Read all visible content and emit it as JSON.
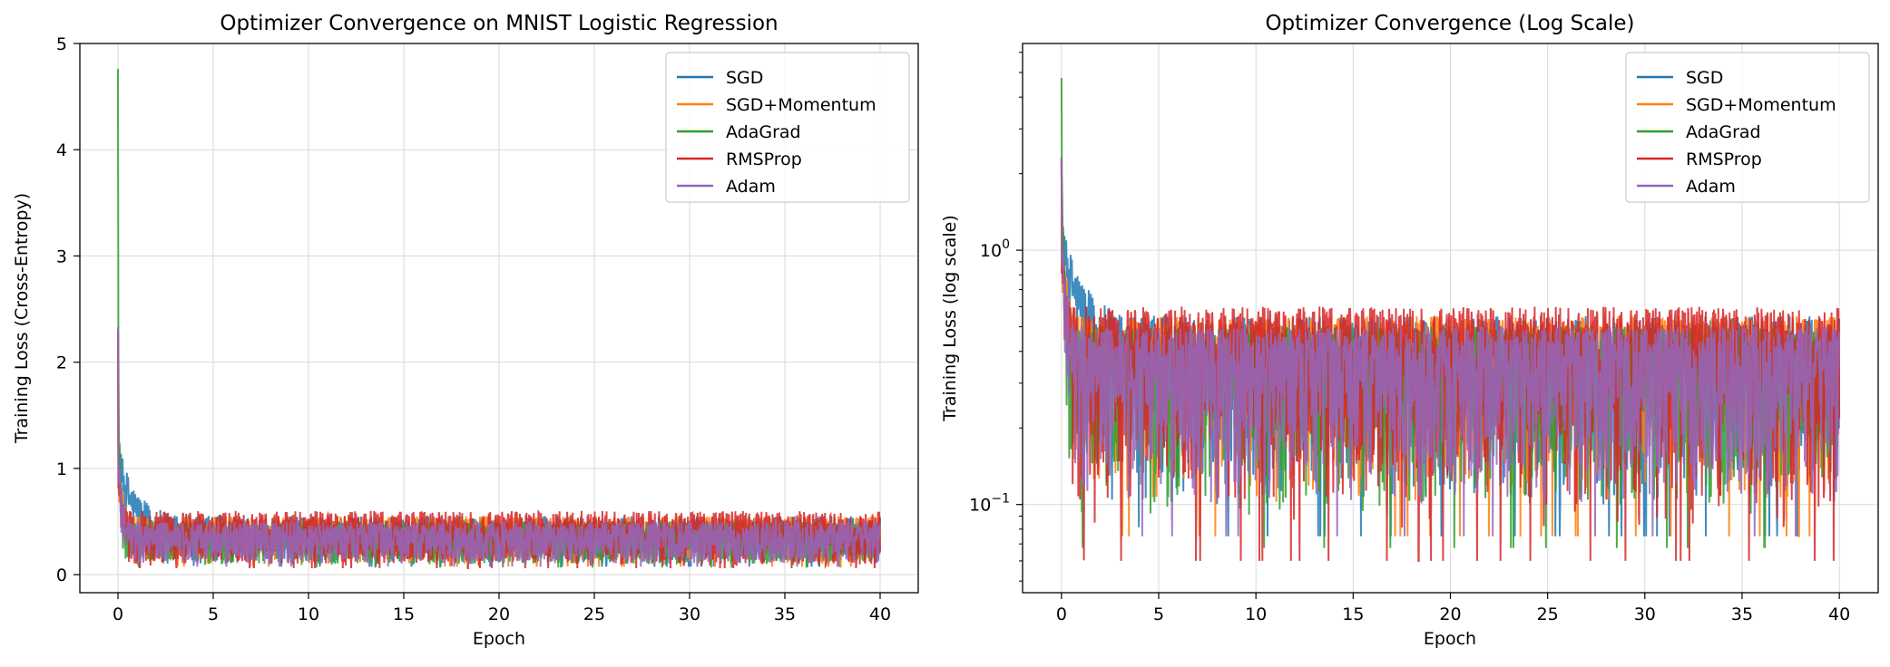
{
  "chart_data": [
    {
      "type": "line",
      "title": "Optimizer Convergence on MNIST Logistic Regression",
      "xlabel": "Epoch",
      "ylabel": "Training Loss (Cross-Entropy)",
      "xlim": [
        -2,
        42
      ],
      "ylim": [
        -0.17,
        5.0
      ],
      "yscale": "linear",
      "xticks": [
        0,
        5,
        10,
        15,
        20,
        25,
        30,
        35,
        40
      ],
      "yticks": [
        0,
        1,
        2,
        3,
        4,
        5
      ],
      "grid": true,
      "legend_position": "top-right",
      "series": [
        {
          "name": "SGD",
          "color": "#1f77b4",
          "start": 2.3,
          "floor": 0.5,
          "band_hi": 0.55,
          "band_lo": 0.1,
          "tau": 0.9
        },
        {
          "name": "SGD+Momentum",
          "color": "#ff7f0e",
          "start": 2.3,
          "floor": 0.45,
          "band_hi": 0.55,
          "band_lo": 0.1,
          "tau": 0.25
        },
        {
          "name": "AdaGrad",
          "color": "#2ca02c",
          "start": 4.76,
          "floor": 0.45,
          "band_hi": 0.5,
          "band_lo": 0.09,
          "tau": 0.1
        },
        {
          "name": "RMSProp",
          "color": "#d62728",
          "start": 2.3,
          "floor": 0.45,
          "band_hi": 0.6,
          "band_lo": 0.08,
          "tau": 0.15
        },
        {
          "name": "Adam",
          "color": "#9467bd",
          "start": 2.33,
          "floor": 0.45,
          "band_hi": 0.5,
          "band_lo": 0.1,
          "tau": 0.2
        }
      ]
    },
    {
      "type": "line",
      "title": "Optimizer Convergence (Log Scale)",
      "xlabel": "Epoch",
      "ylabel": "Training Loss (log scale)",
      "xlim": [
        -2,
        42
      ],
      "ylim": [
        0.045,
        6.5
      ],
      "yscale": "log",
      "xticks": [
        0,
        5,
        10,
        15,
        20,
        25,
        30,
        35,
        40
      ],
      "yticks": [
        {
          "value": 1,
          "base": "10",
          "exp": "0"
        },
        {
          "value": 0.1,
          "base": "10",
          "exp": "−1"
        }
      ],
      "grid": true,
      "legend_position": "top-right",
      "series": [
        {
          "name": "SGD",
          "color": "#1f77b4",
          "start": 2.3,
          "floor": 0.5,
          "band_hi": 0.55,
          "band_lo": 0.1,
          "tau": 0.9
        },
        {
          "name": "SGD+Momentum",
          "color": "#ff7f0e",
          "start": 2.3,
          "floor": 0.45,
          "band_hi": 0.55,
          "band_lo": 0.1,
          "tau": 0.25
        },
        {
          "name": "AdaGrad",
          "color": "#2ca02c",
          "start": 4.76,
          "floor": 0.45,
          "band_hi": 0.5,
          "band_lo": 0.09,
          "tau": 0.1
        },
        {
          "name": "RMSProp",
          "color": "#d62728",
          "start": 2.3,
          "floor": 0.45,
          "band_hi": 0.6,
          "band_lo": 0.08,
          "tau": 0.15
        },
        {
          "name": "Adam",
          "color": "#9467bd",
          "start": 2.33,
          "floor": 0.45,
          "band_hi": 0.5,
          "band_lo": 0.1,
          "tau": 0.2
        }
      ]
    }
  ]
}
